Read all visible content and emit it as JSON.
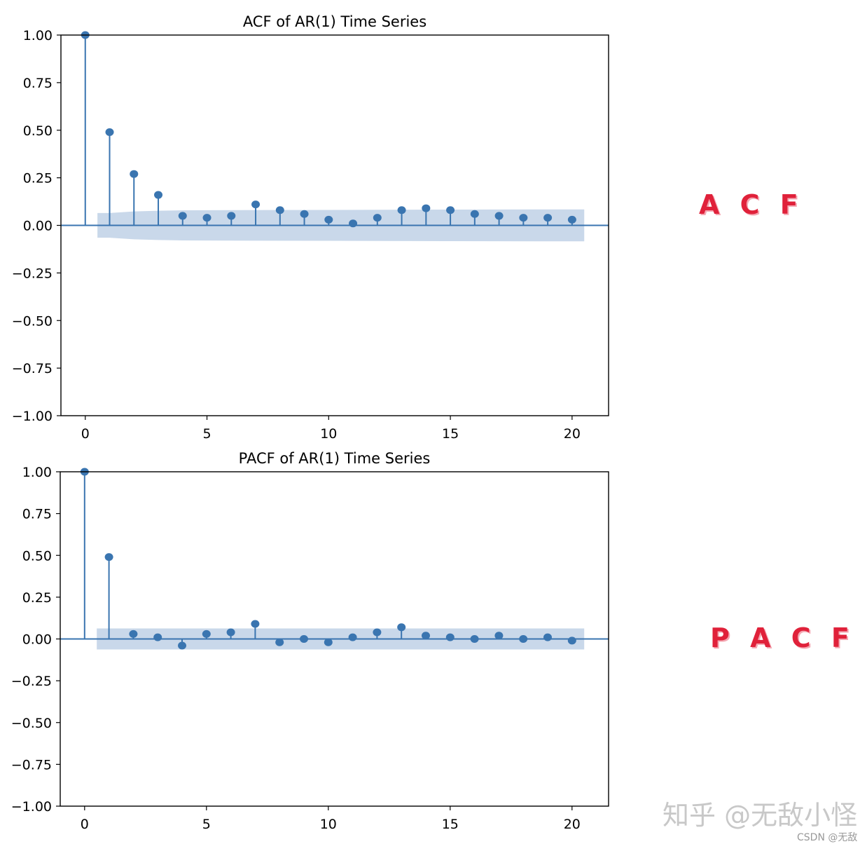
{
  "chart_data": [
    {
      "type": "stem",
      "title": "ACF of AR(1) Time Series",
      "xlabel": "",
      "ylabel": "",
      "x_ticks": [
        0,
        5,
        10,
        15,
        20
      ],
      "y_ticks": [
        "1.00",
        "0.75",
        "0.50",
        "0.25",
        "0.00",
        "−0.25",
        "−0.50",
        "−0.75",
        "−1.00"
      ],
      "xlim": [
        -1,
        21.5
      ],
      "ylim": [
        -1,
        1
      ],
      "lags": [
        0,
        1,
        2,
        3,
        4,
        5,
        6,
        7,
        8,
        9,
        10,
        11,
        12,
        13,
        14,
        15,
        16,
        17,
        18,
        19,
        20
      ],
      "values": [
        1.0,
        0.49,
        0.27,
        0.16,
        0.05,
        0.04,
        0.05,
        0.11,
        0.08,
        0.06,
        0.03,
        0.01,
        0.04,
        0.08,
        0.09,
        0.08,
        0.06,
        0.05,
        0.04,
        0.04,
        0.03
      ],
      "confidence_band": {
        "lags": [
          0.5,
          1,
          2,
          3,
          4,
          6,
          10,
          15,
          20.5
        ],
        "upper": [
          0.065,
          0.065,
          0.073,
          0.077,
          0.079,
          0.08,
          0.081,
          0.083,
          0.084
        ],
        "lower": [
          -0.065,
          -0.065,
          -0.073,
          -0.077,
          -0.079,
          -0.08,
          -0.081,
          -0.083,
          -0.084
        ]
      },
      "grid": false,
      "colors": {
        "stem": "#3a75b0",
        "band": "#c9d8ea"
      }
    },
    {
      "type": "stem",
      "title": "PACF of AR(1) Time Series",
      "xlabel": "",
      "ylabel": "",
      "x_ticks": [
        0,
        5,
        10,
        15,
        20
      ],
      "y_ticks": [
        "1.00",
        "0.75",
        "0.50",
        "0.25",
        "0.00",
        "−0.25",
        "−0.50",
        "−0.75",
        "−1.00"
      ],
      "xlim": [
        -1,
        21.5
      ],
      "ylim": [
        -1,
        1
      ],
      "lags": [
        0,
        1,
        2,
        3,
        4,
        5,
        6,
        7,
        8,
        9,
        10,
        11,
        12,
        13,
        14,
        15,
        16,
        17,
        18,
        19,
        20
      ],
      "values": [
        1.0,
        0.49,
        0.03,
        0.01,
        -0.04,
        0.03,
        0.04,
        0.09,
        -0.02,
        0.0,
        -0.02,
        0.01,
        0.04,
        0.07,
        0.02,
        0.01,
        0.0,
        0.02,
        0.0,
        0.01,
        -0.01
      ],
      "confidence_band": {
        "lags": [
          0.5,
          20.5
        ],
        "upper": [
          0.063,
          0.063
        ],
        "lower": [
          -0.063,
          -0.063
        ]
      },
      "grid": false,
      "colors": {
        "stem": "#3a75b0",
        "band": "#c9d8ea"
      }
    }
  ],
  "annotations": {
    "acf_label": "A C F",
    "pacf_label": "P A C F"
  },
  "watermark": {
    "text": "知乎 @无敌小怪",
    "sub": "CSDN @无敌"
  }
}
